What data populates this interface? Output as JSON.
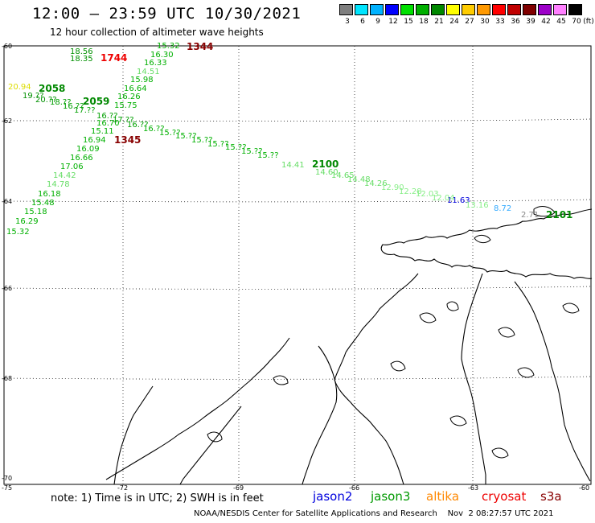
{
  "header": {
    "title": "12:00 – 23:59 UTC 10/30/2021",
    "subtitle": "12 hour collection of altimeter wave heights"
  },
  "scale": {
    "labels": [
      "3",
      "6",
      "9",
      "12",
      "15",
      "18",
      "21",
      "24",
      "27",
      "30",
      "33",
      "36",
      "39",
      "42",
      "45",
      "70"
    ],
    "unit": "(ft)",
    "colors": [
      "#7f7f7f",
      "#00e5ff",
      "#00b2ff",
      "#0000ff",
      "#00e000",
      "#00b000",
      "#008800",
      "#ffff00",
      "#ffcc00",
      "#ff9900",
      "#ff0000",
      "#c00000",
      "#800000",
      "#9c00c8",
      "#ff80ff",
      "#000000"
    ]
  },
  "axes": {
    "lat_labels": [
      "-60",
      "-62",
      "-64",
      "-66",
      "-68",
      "-70"
    ],
    "lon_labels": [
      "-75",
      "-72",
      "-69",
      "-66",
      "-63",
      "-60"
    ]
  },
  "footer": {
    "note": "note:  1) Time is in UTC;  2) SWH is in feet",
    "satellites": [
      {
        "name": "jason2",
        "color": "#0000dd"
      },
      {
        "name": "jason3",
        "color": "#009900"
      },
      {
        "name": "altika",
        "color": "#ff8800"
      },
      {
        "name": "cryosat",
        "color": "#ee0000"
      },
      {
        "name": "s3a",
        "color": "#880000"
      }
    ],
    "credit": "NOAA/NESDIS Center for Satellite Applications and Research    Nov  2 08:27:57 UTC 2021"
  },
  "track_times": [
    {
      "text": "1344",
      "color": "#880000"
    },
    {
      "text": "1744",
      "color": "#ee0000"
    },
    {
      "text": "1345",
      "color": "#880000"
    },
    {
      "text": "2100",
      "color": "#008800"
    },
    {
      "text": "2101",
      "color": "#008800"
    },
    {
      "text": "2058",
      "color": "#008800"
    },
    {
      "text": "2059",
      "color": "#008800"
    }
  ],
  "wave_heights": [
    {
      "text": "15.32",
      "color": "#00b000"
    },
    {
      "text": "16.30",
      "color": "#00b000"
    },
    {
      "text": "16.33",
      "color": "#00b000"
    },
    {
      "text": "14.51",
      "color": "#66dd66"
    },
    {
      "text": "15.98",
      "color": "#00b000"
    },
    {
      "text": "16.64",
      "color": "#00b000"
    },
    {
      "text": "16.26",
      "color": "#00b000"
    },
    {
      "text": "15.75",
      "color": "#00b000"
    },
    {
      "text": "16.70",
      "color": "#00b000"
    },
    {
      "text": "15.11",
      "color": "#00b000"
    },
    {
      "text": "16.94",
      "color": "#00b000"
    },
    {
      "text": "16.09",
      "color": "#00b000"
    },
    {
      "text": "16.66",
      "color": "#00b000"
    },
    {
      "text": "17.06",
      "color": "#00b000"
    },
    {
      "text": "14.42",
      "color": "#66dd66"
    },
    {
      "text": "14.78",
      "color": "#66dd66"
    },
    {
      "text": "16.18",
      "color": "#00b000"
    },
    {
      "text": "15.48",
      "color": "#00b000"
    },
    {
      "text": "15.18",
      "color": "#00b000"
    },
    {
      "text": "16.29",
      "color": "#00b000"
    },
    {
      "text": "15.32",
      "color": "#00b000"
    },
    {
      "text": "18.56",
      "color": "#009000"
    },
    {
      "text": "18.35",
      "color": "#009000"
    },
    {
      "text": "20.94",
      "color": "#dddd00"
    },
    {
      "text": "11.63",
      "color": "#0000dd"
    },
    {
      "text": "8.72",
      "color": "#33aaff"
    },
    {
      "text": "2.71",
      "color": "#888888"
    },
    {
      "text": "14.41",
      "color": "#66dd66"
    },
    {
      "text": "14.60",
      "color": "#66dd66"
    },
    {
      "text": "14.65",
      "color": "#66dd66"
    },
    {
      "text": "14.48",
      "color": "#66dd66"
    },
    {
      "text": "14.26",
      "color": "#66dd66"
    },
    {
      "text": "12.90",
      "color": "#88ee88"
    },
    {
      "text": "12.28",
      "color": "#88ee88"
    },
    {
      "text": "12.03",
      "color": "#88ee88"
    },
    {
      "text": "12.04",
      "color": "#88ee88"
    },
    {
      "text": "13.16",
      "color": "#88ee88"
    }
  ]
}
